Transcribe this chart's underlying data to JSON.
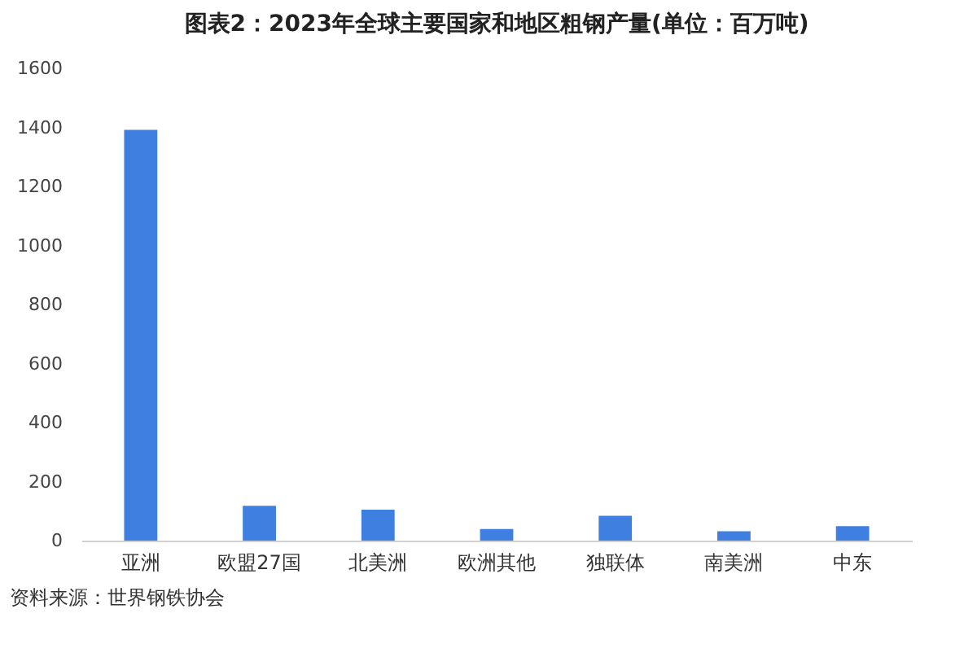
{
  "chart_data": {
    "type": "bar",
    "title": "图表2：2023年全球主要国家和地区粗钢产量(单位：百万吨)",
    "categories": [
      "亚洲",
      "欧盟27国",
      "北美洲",
      "欧洲其他",
      "独联体",
      "南美洲",
      "中东"
    ],
    "values": [
      1392,
      118,
      105,
      39,
      84,
      32,
      49
    ],
    "color": "#3f7fdf",
    "ylim": [
      0,
      1600
    ],
    "yticks": [
      0,
      200,
      400,
      600,
      800,
      1000,
      1200,
      1400,
      1600
    ],
    "annotations": [
      "资料来源：世界钢铁协会"
    ]
  }
}
